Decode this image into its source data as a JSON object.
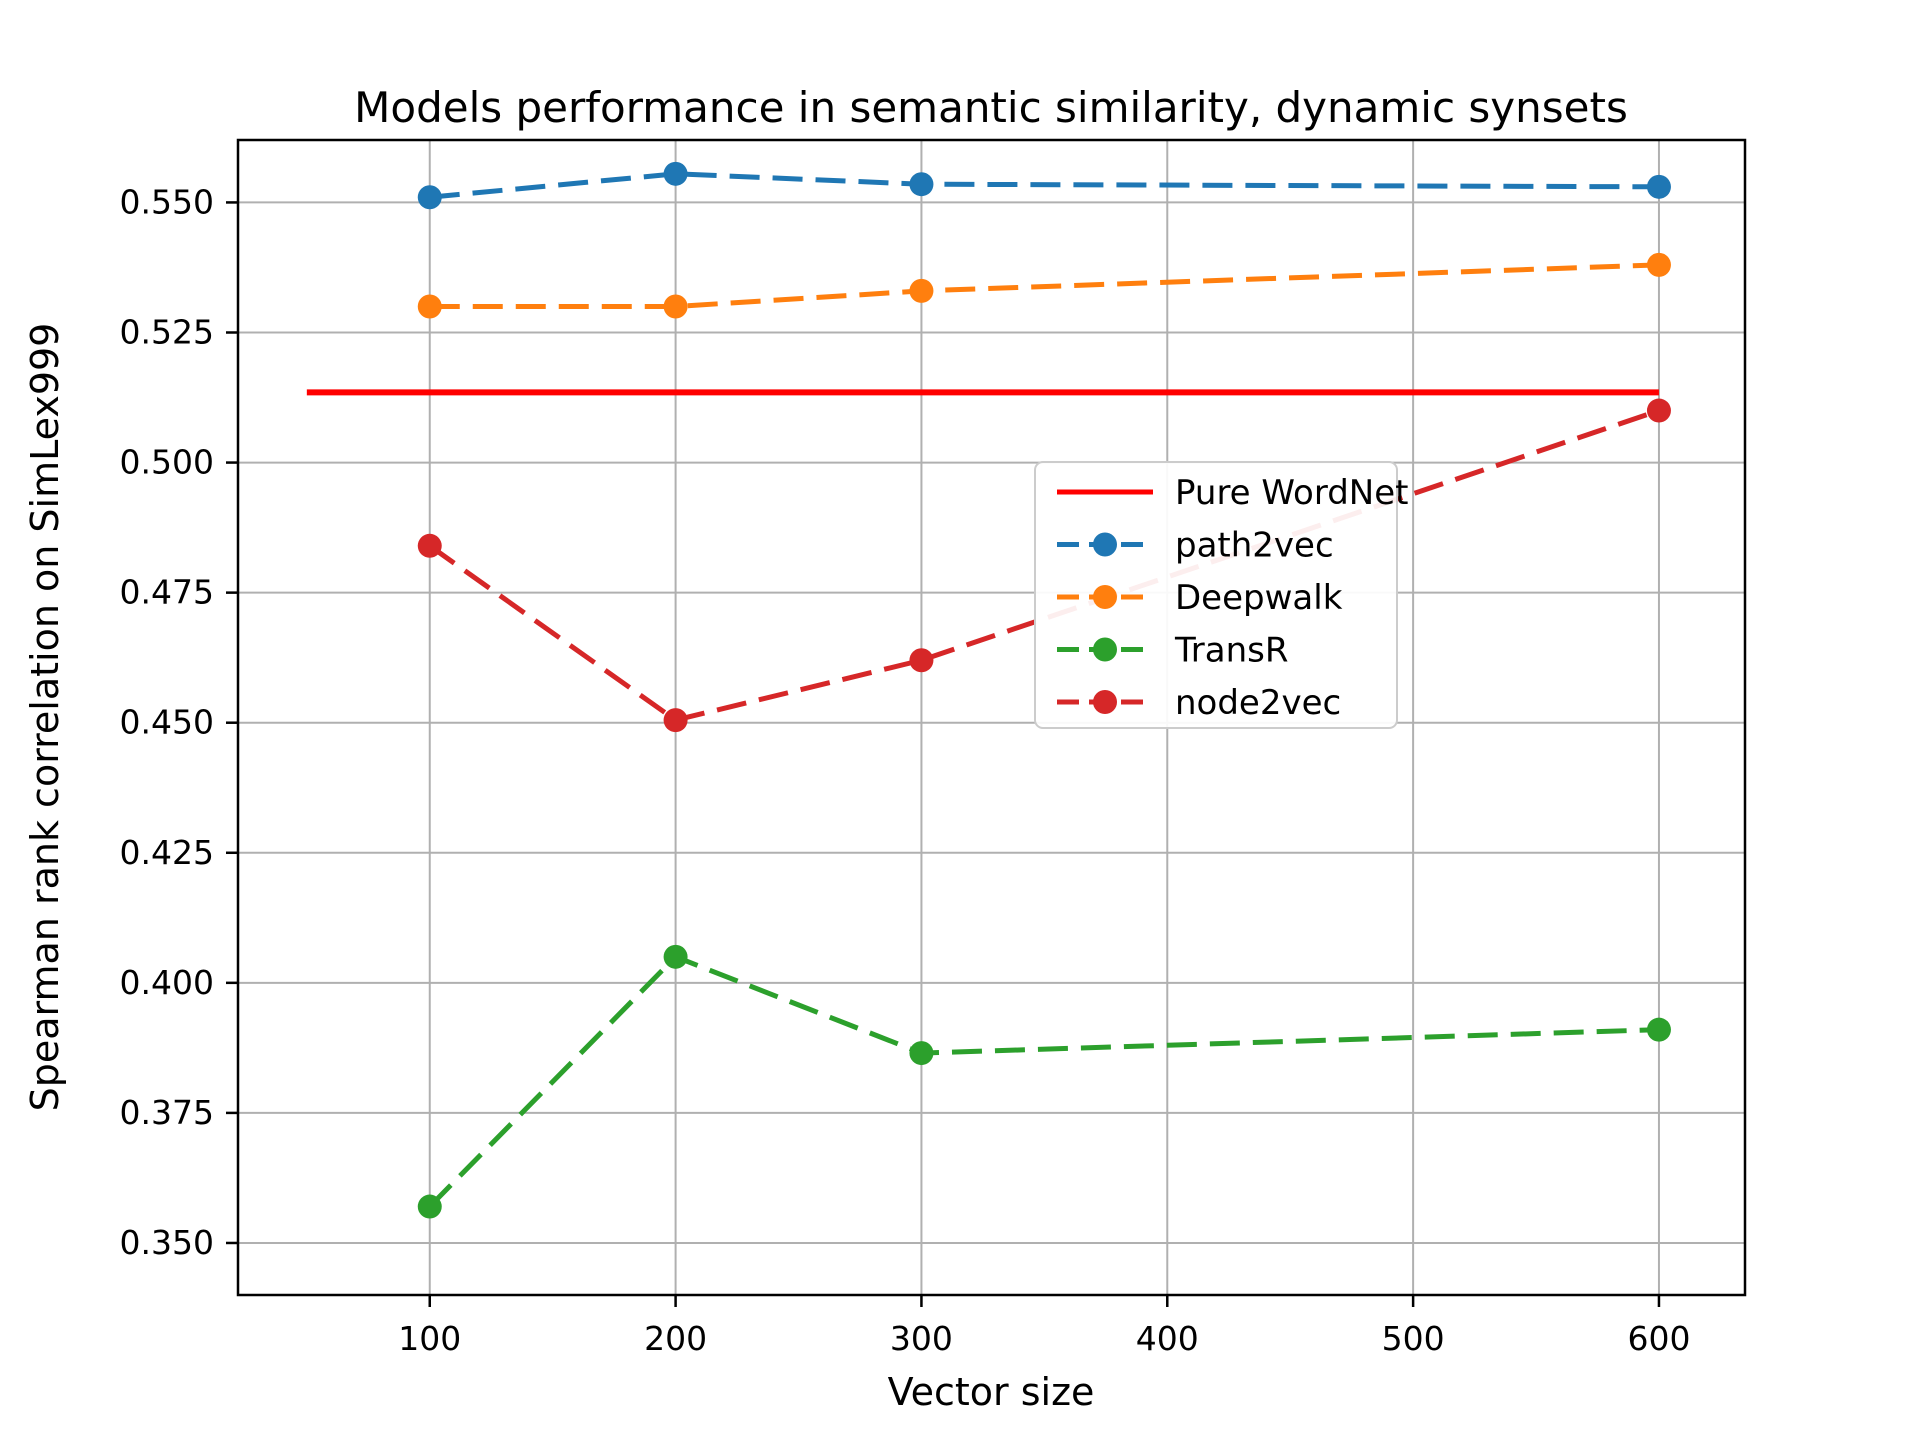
{
  "chart_data": {
    "type": "line",
    "title": "Models performance in semantic similarity, dynamic synsets",
    "xlabel": "Vector size",
    "ylabel": "Spearman rank correlation on SimLex999",
    "grid": true,
    "legend_position": "center right",
    "x": [
      100,
      200,
      300,
      600
    ],
    "xlim": [
      22,
      635
    ],
    "ylim": [
      0.34,
      0.562
    ],
    "xticks": [
      100,
      200,
      300,
      400,
      500,
      600
    ],
    "xtick_labels": [
      "100",
      "200",
      "300",
      "400",
      "500",
      "600"
    ],
    "yticks": [
      0.35,
      0.375,
      0.4,
      0.425,
      0.45,
      0.475,
      0.5,
      0.525,
      0.55
    ],
    "ytick_labels": [
      "0.350",
      "0.375",
      "0.400",
      "0.425",
      "0.450",
      "0.475",
      "0.500",
      "0.525",
      "0.550"
    ],
    "baseline": {
      "name": "Pure WordNet",
      "value": 0.5135,
      "x_span": [
        50,
        600
      ],
      "color": "#ff0000",
      "style": "solid"
    },
    "series": [
      {
        "name": "path2vec",
        "color": "#1f77b4",
        "style": "dashed",
        "marker": "circle",
        "values": [
          0.551,
          0.5555,
          0.5535,
          0.553
        ]
      },
      {
        "name": "Deepwalk",
        "color": "#ff7f0e",
        "style": "dashed",
        "marker": "circle",
        "values": [
          0.53,
          0.53,
          0.533,
          0.538
        ]
      },
      {
        "name": "TransR",
        "color": "#2ca02c",
        "style": "dashed",
        "marker": "circle",
        "values": [
          0.357,
          0.405,
          0.3865,
          0.391
        ]
      },
      {
        "name": "node2vec",
        "color": "#d62728",
        "style": "dashed",
        "marker": "circle",
        "values": [
          0.484,
          0.4505,
          0.462,
          0.51
        ]
      }
    ],
    "legend_entries": [
      "Pure WordNet",
      "path2vec",
      "Deepwalk",
      "TransR",
      "node2vec"
    ]
  }
}
